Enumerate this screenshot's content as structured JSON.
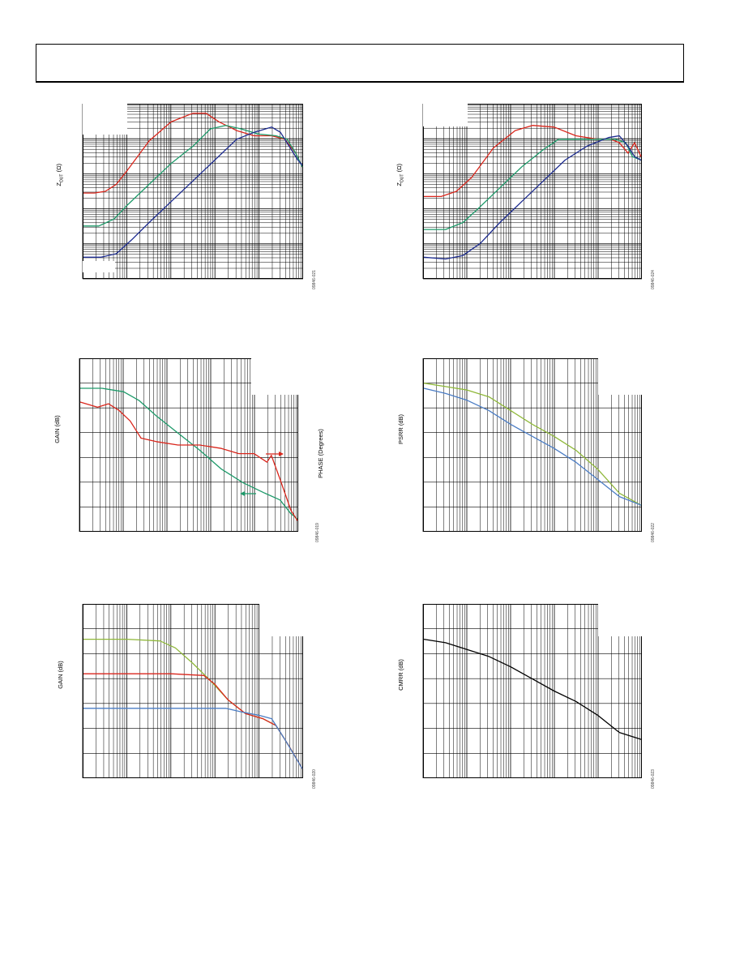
{
  "page": {
    "header_text": ""
  },
  "colors": {
    "red": "#d9261c",
    "green": "#1e9a6a",
    "blue": "#1c2b8f",
    "lightgreen": "#8fb83a",
    "steelblue": "#4a7cc4",
    "black": "#000000"
  },
  "chart_data": [
    {
      "id": "zout-left",
      "type": "line",
      "ylabel_html": "Z_OUT (Ω)",
      "ylabel_main": "Z",
      "ylabel_sub": "OUT",
      "ylabel_unit": "(Ω)",
      "fig_id": "09846-021",
      "log_x": true,
      "log_y": true,
      "grid": true,
      "series": [
        {
          "color": "red",
          "values": [
            [
              0,
              0.51
            ],
            [
              0.05,
              0.51
            ],
            [
              0.1,
              0.5
            ],
            [
              0.15,
              0.46
            ],
            [
              0.2,
              0.38
            ],
            [
              0.3,
              0.21
            ],
            [
              0.4,
              0.1
            ],
            [
              0.5,
              0.05
            ],
            [
              0.56,
              0.05
            ],
            [
              0.62,
              0.1
            ],
            [
              0.7,
              0.15
            ],
            [
              0.78,
              0.18
            ],
            [
              0.86,
              0.18
            ],
            [
              0.92,
              0.2
            ],
            [
              0.97,
              0.28
            ],
            [
              1.0,
              0.36
            ]
          ]
        },
        {
          "color": "green",
          "values": [
            [
              0,
              0.7
            ],
            [
              0.07,
              0.7
            ],
            [
              0.14,
              0.66
            ],
            [
              0.2,
              0.58
            ],
            [
              0.3,
              0.46
            ],
            [
              0.4,
              0.34
            ],
            [
              0.5,
              0.24
            ],
            [
              0.58,
              0.14
            ],
            [
              0.65,
              0.12
            ],
            [
              0.72,
              0.14
            ],
            [
              0.8,
              0.17
            ],
            [
              0.88,
              0.18
            ],
            [
              0.93,
              0.2
            ],
            [
              0.97,
              0.28
            ],
            [
              1.0,
              0.36
            ]
          ]
        },
        {
          "color": "blue",
          "values": [
            [
              0,
              0.88
            ],
            [
              0.08,
              0.88
            ],
            [
              0.15,
              0.86
            ],
            [
              0.22,
              0.78
            ],
            [
              0.3,
              0.68
            ],
            [
              0.4,
              0.56
            ],
            [
              0.5,
              0.44
            ],
            [
              0.6,
              0.32
            ],
            [
              0.7,
              0.2
            ],
            [
              0.78,
              0.16
            ],
            [
              0.86,
              0.13
            ],
            [
              0.9,
              0.16
            ],
            [
              0.94,
              0.24
            ],
            [
              0.98,
              0.32
            ],
            [
              1.0,
              0.35
            ]
          ]
        }
      ]
    },
    {
      "id": "zout-right",
      "type": "line",
      "ylabel_html": "Z_OUT (Ω)",
      "ylabel_main": "Z",
      "ylabel_sub": "OUT",
      "ylabel_unit": "(Ω)",
      "fig_id": "09846-024",
      "log_x": true,
      "log_y": true,
      "grid": true,
      "series": [
        {
          "color": "red",
          "values": [
            [
              0,
              0.53
            ],
            [
              0.08,
              0.53
            ],
            [
              0.15,
              0.5
            ],
            [
              0.22,
              0.42
            ],
            [
              0.32,
              0.25
            ],
            [
              0.42,
              0.15
            ],
            [
              0.5,
              0.12
            ],
            [
              0.6,
              0.13
            ],
            [
              0.7,
              0.18
            ],
            [
              0.8,
              0.2
            ],
            [
              0.86,
              0.2
            ],
            [
              0.9,
              0.22
            ],
            [
              0.94,
              0.28
            ],
            [
              0.97,
              0.22
            ],
            [
              1.0,
              0.3
            ]
          ]
        },
        {
          "color": "green",
          "values": [
            [
              0,
              0.72
            ],
            [
              0.1,
              0.72
            ],
            [
              0.18,
              0.68
            ],
            [
              0.25,
              0.6
            ],
            [
              0.35,
              0.48
            ],
            [
              0.45,
              0.36
            ],
            [
              0.55,
              0.26
            ],
            [
              0.62,
              0.2
            ],
            [
              0.7,
              0.2
            ],
            [
              0.8,
              0.2
            ],
            [
              0.88,
              0.2
            ],
            [
              0.93,
              0.22
            ],
            [
              0.96,
              0.3
            ],
            [
              1.0,
              0.32
            ]
          ]
        },
        {
          "color": "blue",
          "values": [
            [
              0,
              0.88
            ],
            [
              0.1,
              0.89
            ],
            [
              0.18,
              0.87
            ],
            [
              0.26,
              0.8
            ],
            [
              0.35,
              0.68
            ],
            [
              0.45,
              0.56
            ],
            [
              0.55,
              0.44
            ],
            [
              0.65,
              0.32
            ],
            [
              0.75,
              0.24
            ],
            [
              0.85,
              0.19
            ],
            [
              0.9,
              0.18
            ],
            [
              0.94,
              0.24
            ],
            [
              0.97,
              0.3
            ],
            [
              1.0,
              0.32
            ]
          ]
        }
      ]
    },
    {
      "id": "gain-phase",
      "type": "line",
      "ylabel_html": "GAIN (dB)",
      "ylabel": "GAIN (dB)",
      "ylabel_right": "PHASE (Degrees)",
      "fig_id": "09846-019",
      "log_x": true,
      "grid": true,
      "series": [
        {
          "color": "green",
          "values": [
            [
              0,
              0.17
            ],
            [
              0.1,
              0.17
            ],
            [
              0.2,
              0.19
            ],
            [
              0.27,
              0.24
            ],
            [
              0.35,
              0.33
            ],
            [
              0.45,
              0.43
            ],
            [
              0.55,
              0.53
            ],
            [
              0.65,
              0.64
            ],
            [
              0.75,
              0.72
            ],
            [
              0.85,
              0.78
            ],
            [
              0.92,
              0.82
            ],
            [
              0.97,
              0.9
            ],
            [
              1.0,
              0.93
            ]
          ]
        },
        {
          "color": "red",
          "values": [
            [
              0,
              0.25
            ],
            [
              0.08,
              0.28
            ],
            [
              0.13,
              0.26
            ],
            [
              0.18,
              0.3
            ],
            [
              0.23,
              0.36
            ],
            [
              0.28,
              0.46
            ],
            [
              0.35,
              0.48
            ],
            [
              0.45,
              0.5
            ],
            [
              0.55,
              0.5
            ],
            [
              0.65,
              0.52
            ],
            [
              0.73,
              0.55
            ],
            [
              0.8,
              0.55
            ],
            [
              0.86,
              0.6
            ],
            [
              0.88,
              0.56
            ],
            [
              0.92,
              0.7
            ],
            [
              0.97,
              0.88
            ],
            [
              1.0,
              0.94
            ]
          ]
        }
      ]
    },
    {
      "id": "psrr",
      "type": "line",
      "ylabel_html": "PSRR (dB)",
      "ylabel": "PSRR (dB)",
      "fig_id": "09846-022",
      "log_x": true,
      "grid": true,
      "series": [
        {
          "color": "lightgreen",
          "values": [
            [
              0,
              0.14
            ],
            [
              0.1,
              0.16
            ],
            [
              0.2,
              0.18
            ],
            [
              0.3,
              0.22
            ],
            [
              0.4,
              0.3
            ],
            [
              0.5,
              0.38
            ],
            [
              0.6,
              0.45
            ],
            [
              0.7,
              0.53
            ],
            [
              0.8,
              0.64
            ],
            [
              0.9,
              0.78
            ],
            [
              1.0,
              0.85
            ]
          ]
        },
        {
          "color": "steelblue",
          "values": [
            [
              0,
              0.17
            ],
            [
              0.1,
              0.2
            ],
            [
              0.2,
              0.24
            ],
            [
              0.3,
              0.3
            ],
            [
              0.4,
              0.38
            ],
            [
              0.5,
              0.45
            ],
            [
              0.6,
              0.52
            ],
            [
              0.7,
              0.6
            ],
            [
              0.8,
              0.7
            ],
            [
              0.9,
              0.8
            ],
            [
              1.0,
              0.85
            ]
          ]
        }
      ]
    },
    {
      "id": "gain-closed",
      "type": "line",
      "ylabel_html": "GAIN (dB)",
      "ylabel": "GAIN (dB)",
      "fig_id": "09846-020",
      "log_x": true,
      "grid": true,
      "series": [
        {
          "color": "lightgreen",
          "values": [
            [
              0,
              0.2
            ],
            [
              0.1,
              0.2
            ],
            [
              0.2,
              0.2
            ],
            [
              0.35,
              0.21
            ],
            [
              0.42,
              0.25
            ],
            [
              0.5,
              0.34
            ],
            [
              0.58,
              0.44
            ],
            [
              0.66,
              0.55
            ],
            [
              0.74,
              0.63
            ],
            [
              0.82,
              0.66
            ],
            [
              0.88,
              0.7
            ],
            [
              0.94,
              0.82
            ],
            [
              1.0,
              0.95
            ]
          ]
        },
        {
          "color": "red",
          "values": [
            [
              0,
              0.4
            ],
            [
              0.1,
              0.4
            ],
            [
              0.2,
              0.4
            ],
            [
              0.4,
              0.4
            ],
            [
              0.55,
              0.41
            ],
            [
              0.6,
              0.46
            ],
            [
              0.66,
              0.55
            ],
            [
              0.74,
              0.63
            ],
            [
              0.82,
              0.66
            ],
            [
              0.88,
              0.7
            ],
            [
              0.94,
              0.82
            ],
            [
              1.0,
              0.95
            ]
          ]
        },
        {
          "color": "steelblue",
          "values": [
            [
              0,
              0.6
            ],
            [
              0.1,
              0.6
            ],
            [
              0.2,
              0.6
            ],
            [
              0.5,
              0.6
            ],
            [
              0.65,
              0.6
            ],
            [
              0.72,
              0.62
            ],
            [
              0.8,
              0.64
            ],
            [
              0.86,
              0.66
            ],
            [
              0.92,
              0.78
            ],
            [
              1.0,
              0.95
            ]
          ]
        }
      ]
    },
    {
      "id": "cmrr",
      "type": "line",
      "ylabel_html": "CMRR (dB)",
      "ylabel": "CMRR (dB)",
      "fig_id": "09846-023",
      "log_x": true,
      "grid": true,
      "series": [
        {
          "color": "black",
          "values": [
            [
              0,
              0.2
            ],
            [
              0.1,
              0.22
            ],
            [
              0.2,
              0.26
            ],
            [
              0.3,
              0.3
            ],
            [
              0.4,
              0.36
            ],
            [
              0.5,
              0.43
            ],
            [
              0.6,
              0.5
            ],
            [
              0.7,
              0.56
            ],
            [
              0.8,
              0.64
            ],
            [
              0.9,
              0.74
            ],
            [
              1.0,
              0.78
            ]
          ]
        }
      ]
    }
  ]
}
